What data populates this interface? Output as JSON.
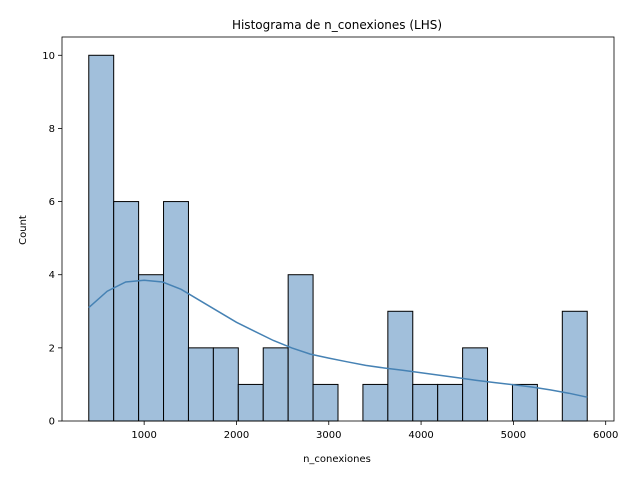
{
  "chart_data": {
    "type": "bar",
    "subtype": "histogram",
    "title": "Histograma de n_conexiones (LHS)",
    "xlabel": "n_conexiones",
    "ylabel": "Count",
    "xlim": [
      110,
      6090
    ],
    "ylim": [
      0,
      10.5
    ],
    "xticks": [
      1000,
      2000,
      3000,
      4000,
      5000,
      6000
    ],
    "yticks": [
      0,
      2,
      4,
      6,
      8,
      10
    ],
    "grid": false,
    "bar_color": "#a1bfdb",
    "bar_edge_color": "#000000",
    "kde_color": "#4682b4",
    "bins": [
      {
        "x0": 400,
        "x1": 670,
        "count": 10
      },
      {
        "x0": 670,
        "x1": 940,
        "count": 6
      },
      {
        "x0": 940,
        "x1": 1210,
        "count": 4
      },
      {
        "x0": 1210,
        "x1": 1480,
        "count": 6
      },
      {
        "x0": 1480,
        "x1": 1750,
        "count": 2
      },
      {
        "x0": 1750,
        "x1": 2020,
        "count": 2
      },
      {
        "x0": 2020,
        "x1": 2290,
        "count": 1
      },
      {
        "x0": 2290,
        "x1": 2560,
        "count": 2
      },
      {
        "x0": 2560,
        "x1": 2830,
        "count": 4
      },
      {
        "x0": 2830,
        "x1": 3100,
        "count": 1
      },
      {
        "x0": 3100,
        "x1": 3370,
        "count": 0
      },
      {
        "x0": 3370,
        "x1": 3640,
        "count": 1
      },
      {
        "x0": 3640,
        "x1": 3910,
        "count": 3
      },
      {
        "x0": 3910,
        "x1": 4180,
        "count": 1
      },
      {
        "x0": 4180,
        "x1": 4450,
        "count": 1
      },
      {
        "x0": 4450,
        "x1": 4720,
        "count": 2
      },
      {
        "x0": 4720,
        "x1": 4990,
        "count": 0
      },
      {
        "x0": 4990,
        "x1": 5260,
        "count": 1
      },
      {
        "x0": 5260,
        "x1": 5530,
        "count": 0
      },
      {
        "x0": 5530,
        "x1": 5800,
        "count": 3
      }
    ],
    "kde": {
      "x": [
        400,
        600,
        800,
        1000,
        1200,
        1400,
        1600,
        1800,
        2000,
        2200,
        2400,
        2600,
        2800,
        3000,
        3200,
        3400,
        3600,
        3800,
        4000,
        4200,
        4400,
        4600,
        4800,
        5000,
        5200,
        5400,
        5600,
        5800
      ],
      "y": [
        3.1,
        3.55,
        3.8,
        3.85,
        3.8,
        3.6,
        3.3,
        3.0,
        2.7,
        2.45,
        2.2,
        2.0,
        1.83,
        1.72,
        1.62,
        1.52,
        1.45,
        1.39,
        1.32,
        1.25,
        1.18,
        1.11,
        1.05,
        0.99,
        0.93,
        0.85,
        0.76,
        0.65
      ]
    }
  }
}
